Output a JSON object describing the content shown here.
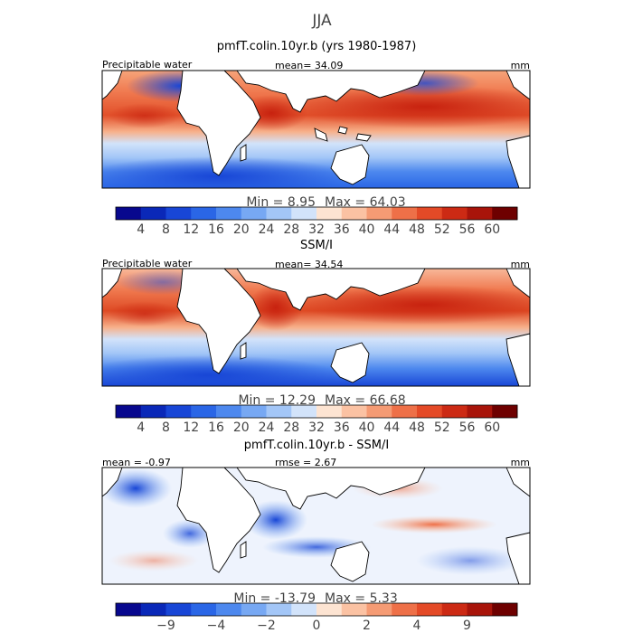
{
  "season": "JJA",
  "chart_data": [
    {
      "type": "heatmap",
      "title": "pmfT.colin.10yr.b (yrs 1980-1987)",
      "label": "Precipitable water",
      "mean_text": "mean=  34.09",
      "units": "mm",
      "min_text": "Min =   8.95",
      "max_text": "Max =  64.03",
      "colorbar_ticks": [
        "4",
        "8",
        "12",
        "16",
        "20",
        "24",
        "28",
        "32",
        "36",
        "40",
        "44",
        "48",
        "52",
        "56",
        "60"
      ],
      "colors": [
        "#08088e",
        "#0a28b8",
        "#1846d6",
        "#2a66e6",
        "#4d88ee",
        "#77a8f3",
        "#a3c6f7",
        "#d2e3fa",
        "#fde4d2",
        "#fbc2a3",
        "#f59b74",
        "#ee7048",
        "#e44a27",
        "#cc2a14",
        "#a8140a",
        "#6e0000"
      ]
    },
    {
      "type": "heatmap",
      "title": "SSM/I",
      "label": "Precipitable water",
      "mean_text": "mean=  34.54",
      "units": "mm",
      "min_text": "Min =  12.29",
      "max_text": "Max =  66.68",
      "colorbar_ticks": [
        "4",
        "8",
        "12",
        "16",
        "20",
        "24",
        "28",
        "32",
        "36",
        "40",
        "44",
        "48",
        "52",
        "56",
        "60"
      ],
      "colors": [
        "#08088e",
        "#0a28b8",
        "#1846d6",
        "#2a66e6",
        "#4d88ee",
        "#77a8f3",
        "#a3c6f7",
        "#d2e3fa",
        "#fde4d2",
        "#fbc2a3",
        "#f59b74",
        "#ee7048",
        "#e44a27",
        "#cc2a14",
        "#a8140a",
        "#6e0000"
      ]
    },
    {
      "type": "heatmap",
      "title": "pmfT.colin.10yr.b - SSM/I",
      "label": "mean =  -0.97",
      "mean_text": "rmse =   2.67",
      "units": "mm",
      "min_text": "Min = -13.79",
      "max_text": "Max =   5.33",
      "colorbar_ticks": [
        "-9",
        "-4",
        "-2",
        "0",
        "2",
        "4",
        "9"
      ],
      "colors": [
        "#08088e",
        "#0a28b8",
        "#1846d6",
        "#2a66e6",
        "#4d88ee",
        "#77a8f3",
        "#a3c6f7",
        "#d2e3fa",
        "#fde4d2",
        "#fbc2a3",
        "#f59b74",
        "#ee7048",
        "#e44a27",
        "#cc2a14",
        "#a8140a",
        "#6e0000"
      ]
    }
  ]
}
